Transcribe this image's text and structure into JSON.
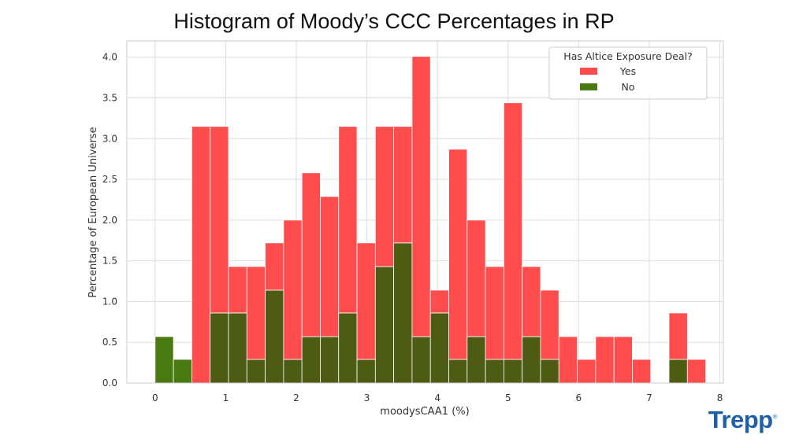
{
  "chart_data": {
    "type": "bar",
    "title": "Histogram of Moody’s CCC Percentages in RP",
    "xlabel": "moodysCAA1 (%)",
    "ylabel": "Percentage of European Universe",
    "xlim": [
      -0.4,
      8.05
    ],
    "ylim": [
      0,
      4.2
    ],
    "xticks": [
      "0",
      "1",
      "2",
      "3",
      "4",
      "5",
      "6",
      "7",
      "8"
    ],
    "yticks": [
      "0.0",
      "0.5",
      "1.0",
      "1.5",
      "2.0",
      "2.5",
      "3.0",
      "3.5",
      "4.0"
    ],
    "grid": true,
    "bin_width": 0.26,
    "bin_start": 0.0,
    "legend": {
      "title": "Has Altice Exposure Deal?",
      "placement": "top-right",
      "entries": [
        "Yes",
        "No"
      ]
    },
    "colors": {
      "Yes": "#ff4d4d",
      "No": "#4a7a12",
      "overlap": "#4d5c12"
    },
    "series": [
      {
        "name": "Yes",
        "values": [
          0,
          0,
          3.15,
          3.15,
          1.43,
          1.43,
          1.72,
          2.0,
          2.58,
          2.29,
          3.15,
          1.72,
          3.15,
          3.15,
          4.01,
          1.14,
          2.87,
          2.0,
          1.43,
          3.44,
          1.43,
          1.14,
          0.57,
          0.29,
          0.57,
          0.57,
          0.29,
          0,
          0.86,
          0.29
        ]
      },
      {
        "name": "No",
        "values": [
          0.57,
          0.29,
          0,
          0.86,
          0.86,
          0.29,
          1.14,
          0.29,
          0.57,
          0.57,
          0.86,
          0.29,
          1.43,
          1.72,
          0.57,
          0.86,
          0.29,
          0.57,
          0.29,
          0.29,
          0.57,
          0.29,
          0,
          0,
          0,
          0,
          0,
          0,
          0.29,
          0
        ]
      }
    ]
  },
  "logo_text": "Trepp",
  "logo_mark": "®"
}
